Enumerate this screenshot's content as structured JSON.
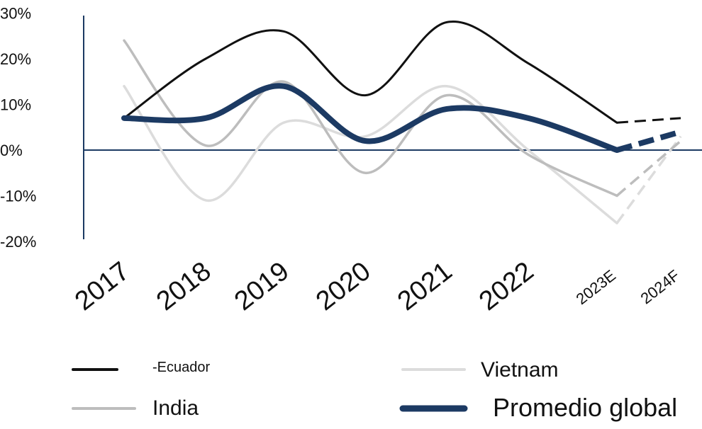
{
  "chart_data": {
    "type": "line",
    "categories": [
      "2017",
      "2018",
      "2019",
      "2020",
      "2021",
      "2022",
      "2023E",
      "2024F"
    ],
    "ylim": [
      -20,
      30
    ],
    "yticks": [
      "30%",
      "20%",
      "10%",
      "0%",
      "-10%",
      "-20%"
    ],
    "ytick_values": [
      30,
      20,
      10,
      0,
      -10,
      -20
    ],
    "forecast_from": "2023E",
    "series": [
      {
        "name": "-Ecuador",
        "color": "#111111",
        "values": [
          7,
          20,
          26,
          12,
          28,
          19,
          6,
          7
        ]
      },
      {
        "name": "India",
        "color": "#bdbdbd",
        "values": [
          24,
          1,
          15,
          -5,
          12,
          -1,
          -10,
          2
        ]
      },
      {
        "name": "Vietnam",
        "color": "#dcdcdc",
        "values": [
          14,
          -11,
          6,
          3,
          14,
          0,
          -16,
          3
        ]
      },
      {
        "name": "Promedio global",
        "color": "#1c3a63",
        "values": [
          7,
          7,
          14,
          2,
          9,
          7,
          0,
          4
        ]
      }
    ],
    "legend_position": "bottom",
    "grid": false
  }
}
